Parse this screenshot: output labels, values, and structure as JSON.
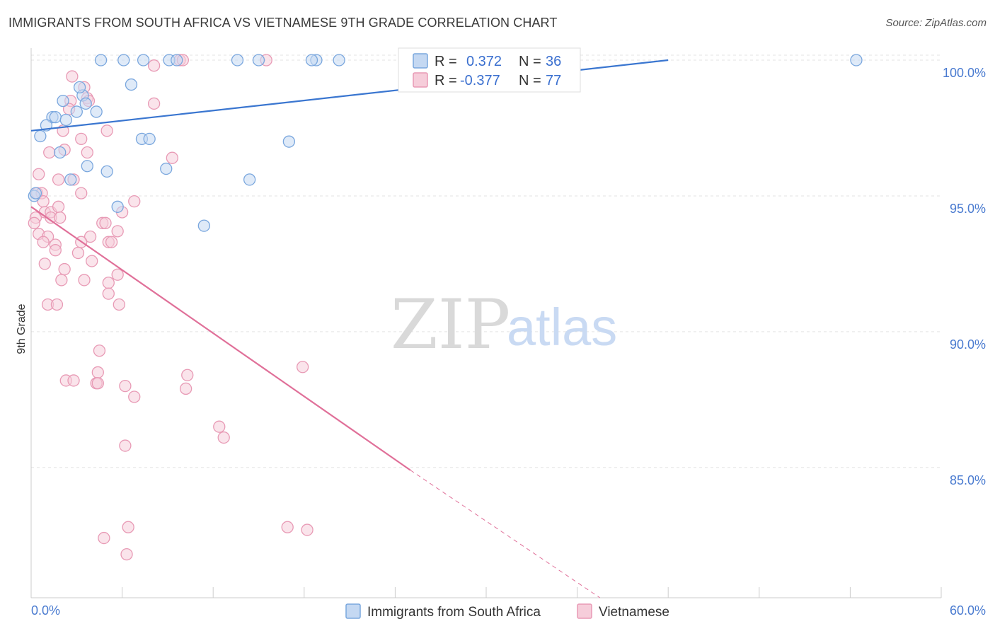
{
  "title": "IMMIGRANTS FROM SOUTH AFRICA VS VIETNAMESE 9TH GRADE CORRELATION CHART",
  "source": "Source: ZipAtlas.com",
  "watermark": {
    "part1": "ZIP",
    "part2": "atlas"
  },
  "colors": {
    "blue": "#7aa7de",
    "blue_fill": "#c4d8f2",
    "blue_line": "#3a76d0",
    "pink": "#e89ab5",
    "pink_fill": "#f6cdda",
    "pink_line": "#e07099",
    "grid": "#e3e3e3",
    "tick_text": "#4a7bd0"
  },
  "legend": {
    "r_label": "R =",
    "n_label": "N =",
    "entries": [
      {
        "r": "0.372",
        "n": "36"
      },
      {
        "r": "-0.377",
        "n": "77"
      }
    ]
  },
  "bottom_legend": [
    "Immigrants from South Africa",
    "Vietnamese"
  ],
  "chart_data": {
    "type": "scatter",
    "title": "IMMIGRANTS FROM SOUTH AFRICA VS VIETNAMESE 9TH GRADE CORRELATION CHART",
    "xlabel": "",
    "ylabel": "9th Grade",
    "xlim": [
      0,
      60
    ],
    "ylim": [
      80.2,
      100.6
    ],
    "x_tick_labels": [
      "0.0%",
      "60.0%"
    ],
    "y_ticks": [
      85,
      90,
      95,
      100
    ],
    "y_tick_labels": [
      "85.0%",
      "90.0%",
      "95.0%",
      "100.0%"
    ],
    "series": [
      {
        "name": "Immigrants from South Africa",
        "r": 0.372,
        "n": 36,
        "trend": {
          "x0": 0,
          "y0": 97.4,
          "x1": 42,
          "y1": 100.0
        },
        "points": [
          [
            0.2,
            95.0
          ],
          [
            4.6,
            100.0
          ],
          [
            6.1,
            100.0
          ],
          [
            7.4,
            100.0
          ],
          [
            9.1,
            100.0
          ],
          [
            9.6,
            100.0
          ],
          [
            13.6,
            100.0
          ],
          [
            15.0,
            100.0
          ],
          [
            18.8,
            100.0
          ],
          [
            20.3,
            100.0
          ],
          [
            54.4,
            100.0
          ],
          [
            6.6,
            99.1
          ],
          [
            2.1,
            98.5
          ],
          [
            3.4,
            98.7
          ],
          [
            3.6,
            98.4
          ],
          [
            1.4,
            97.9
          ],
          [
            1.6,
            97.9
          ],
          [
            3.0,
            98.1
          ],
          [
            4.3,
            98.1
          ],
          [
            2.3,
            97.8
          ],
          [
            1.0,
            97.6
          ],
          [
            0.6,
            97.2
          ],
          [
            7.3,
            97.1
          ],
          [
            7.8,
            97.1
          ],
          [
            17.0,
            97.0
          ],
          [
            1.9,
            96.6
          ],
          [
            3.7,
            96.1
          ],
          [
            5.0,
            95.9
          ],
          [
            8.9,
            96.0
          ],
          [
            14.4,
            95.6
          ],
          [
            2.6,
            95.6
          ],
          [
            5.7,
            94.6
          ],
          [
            11.4,
            93.9
          ],
          [
            0.3,
            95.1
          ],
          [
            3.2,
            99.0
          ],
          [
            18.5,
            100.0
          ]
        ]
      },
      {
        "name": "Vietnamese",
        "r": -0.377,
        "n": 77,
        "trend": {
          "x0": 0,
          "y0": 94.6,
          "x1": 25,
          "y1": 84.9
        },
        "trend_dashed": {
          "x0": 25,
          "y0": 84.9,
          "x1": 37.5,
          "y1": 80.2
        },
        "points": [
          [
            9.8,
            100.0
          ],
          [
            10.0,
            100.0
          ],
          [
            15.5,
            100.0
          ],
          [
            8.1,
            99.8
          ],
          [
            2.7,
            99.4
          ],
          [
            3.7,
            98.6
          ],
          [
            3.5,
            99.0
          ],
          [
            2.6,
            98.5
          ],
          [
            8.1,
            98.4
          ],
          [
            3.8,
            98.5
          ],
          [
            2.5,
            98.2
          ],
          [
            2.1,
            97.4
          ],
          [
            5.0,
            97.4
          ],
          [
            3.3,
            97.1
          ],
          [
            1.2,
            96.6
          ],
          [
            2.2,
            96.7
          ],
          [
            3.7,
            96.6
          ],
          [
            9.3,
            96.4
          ],
          [
            0.5,
            95.8
          ],
          [
            1.8,
            95.6
          ],
          [
            2.8,
            95.6
          ],
          [
            0.4,
            95.1
          ],
          [
            0.7,
            95.1
          ],
          [
            3.3,
            95.1
          ],
          [
            6.8,
            94.8
          ],
          [
            0.8,
            94.8
          ],
          [
            0.9,
            94.4
          ],
          [
            1.3,
            94.4
          ],
          [
            6.0,
            94.4
          ],
          [
            1.8,
            94.6
          ],
          [
            1.3,
            94.2
          ],
          [
            0.3,
            94.2
          ],
          [
            0.2,
            94.0
          ],
          [
            1.9,
            94.2
          ],
          [
            4.7,
            94.0
          ],
          [
            4.9,
            94.0
          ],
          [
            5.7,
            93.7
          ],
          [
            0.5,
            93.6
          ],
          [
            3.9,
            93.5
          ],
          [
            1.1,
            93.5
          ],
          [
            0.8,
            93.3
          ],
          [
            1.6,
            93.2
          ],
          [
            3.3,
            93.3
          ],
          [
            5.1,
            93.3
          ],
          [
            5.3,
            93.3
          ],
          [
            1.6,
            93.0
          ],
          [
            3.1,
            92.9
          ],
          [
            4.0,
            92.6
          ],
          [
            0.9,
            92.5
          ],
          [
            2.2,
            92.3
          ],
          [
            5.7,
            92.1
          ],
          [
            2.0,
            91.9
          ],
          [
            3.5,
            91.9
          ],
          [
            5.1,
            91.8
          ],
          [
            5.1,
            91.4
          ],
          [
            5.8,
            91.0
          ],
          [
            1.1,
            91.0
          ],
          [
            1.7,
            91.0
          ],
          [
            4.5,
            89.3
          ],
          [
            4.4,
            88.5
          ],
          [
            2.3,
            88.2
          ],
          [
            2.8,
            88.2
          ],
          [
            4.3,
            88.1
          ],
          [
            4.4,
            88.1
          ],
          [
            6.2,
            88.0
          ],
          [
            6.8,
            87.6
          ],
          [
            10.3,
            88.4
          ],
          [
            10.2,
            87.9
          ],
          [
            17.9,
            88.7
          ],
          [
            12.4,
            86.5
          ],
          [
            12.7,
            86.1
          ],
          [
            6.2,
            85.8
          ],
          [
            16.9,
            82.8
          ],
          [
            18.2,
            82.7
          ],
          [
            6.4,
            82.8
          ],
          [
            4.8,
            82.4
          ],
          [
            6.3,
            81.8
          ]
        ]
      }
    ]
  }
}
